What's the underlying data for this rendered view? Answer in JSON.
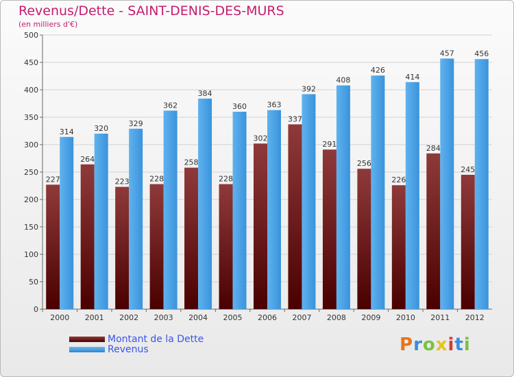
{
  "title": "Revenus/Dette - SAINT-DENIS-DES-MURS",
  "subtitle": "(en milliers d'€)",
  "logo": "Proxiti",
  "colors": {
    "title": "#c41c6e",
    "debt": "#6b1515",
    "revenue": "#4aa3e8",
    "legend_text": "#3a55e8"
  },
  "chart_data": {
    "type": "bar",
    "title": "Revenus/Dette - SAINT-DENIS-DES-MURS",
    "subtitle": "(en milliers d'€)",
    "xlabel": "",
    "ylabel": "",
    "categories": [
      "2000",
      "2001",
      "2002",
      "2003",
      "2004",
      "2005",
      "2006",
      "2007",
      "2008",
      "2009",
      "2010",
      "2011",
      "2012"
    ],
    "series": [
      {
        "name": "Montant de la Dette",
        "values": [
          227,
          264,
          223,
          228,
          258,
          228,
          302,
          337,
          291,
          256,
          226,
          284,
          245
        ]
      },
      {
        "name": "Revenus",
        "values": [
          314,
          320,
          329,
          362,
          384,
          360,
          363,
          392,
          408,
          426,
          414,
          457,
          456
        ]
      }
    ],
    "ylim": [
      0,
      500
    ],
    "yticks": [
      0,
      50,
      100,
      150,
      200,
      250,
      300,
      350,
      400,
      450,
      500
    ],
    "grid": true,
    "legend": "bottom-left"
  }
}
